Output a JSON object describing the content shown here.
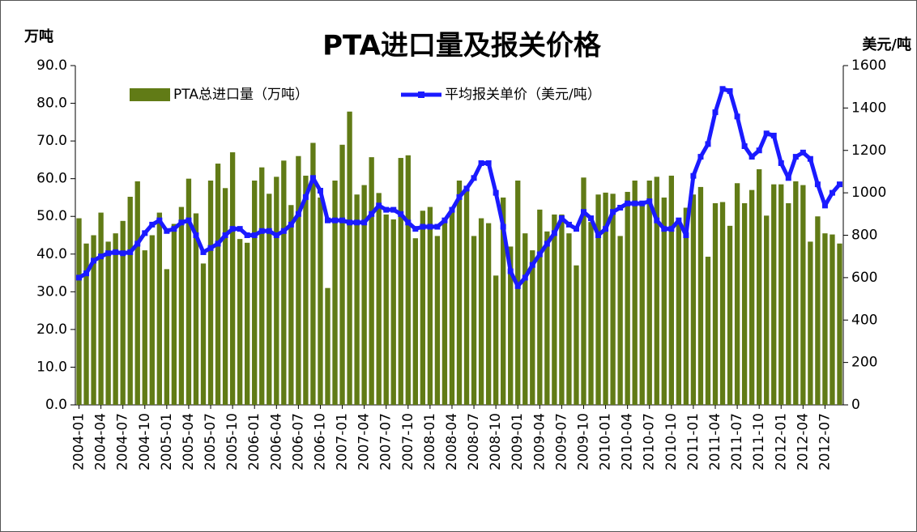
{
  "chart_data": {
    "type": "bar",
    "title": "PTA进口量及报关价格",
    "y_label": "万吨",
    "y2_label": "美元/吨",
    "categories": [
      "2004-01",
      null,
      null,
      "2004-04",
      null,
      null,
      "2004-07",
      null,
      null,
      "2004-10",
      null,
      null,
      "2005-01",
      null,
      null,
      "2005-04",
      null,
      null,
      "2005-07",
      null,
      null,
      "2005-10",
      null,
      null,
      "2006-01",
      null,
      null,
      "2006-04",
      null,
      null,
      "2006-07",
      null,
      null,
      "2006-10",
      null,
      null,
      "2007-01",
      null,
      null,
      "2007-04",
      null,
      null,
      "2007-07",
      null,
      null,
      "2007-10",
      null,
      null,
      "2008-01",
      null,
      null,
      "2008-04",
      null,
      null,
      "2008-07",
      null,
      null,
      "2008-10",
      null,
      null,
      "2009-01",
      null,
      null,
      "2009-04",
      null,
      null,
      "2009-07",
      null,
      null,
      "2009-10",
      null,
      null,
      "2010-01",
      null,
      null,
      "2010-04",
      null,
      null,
      "2010-07",
      null,
      null,
      "2010-10",
      null,
      null,
      "2011-01",
      null,
      null,
      "2011-04",
      null,
      null,
      "2011-07",
      null,
      null,
      "2011-10",
      null,
      null,
      "2012-01",
      null,
      null,
      "2012-04",
      null,
      null,
      "2012-07",
      null,
      null
    ],
    "series": [
      {
        "name": "PTA总进口量（万吨）",
        "type": "bar",
        "color": "#617b16",
        "values": [
          49.5,
          42.8,
          45,
          51,
          43.3,
          45.5,
          48.8,
          55.2,
          59.3,
          41,
          45,
          51,
          36,
          48,
          52.5,
          60,
          50.8,
          37.5,
          59.5,
          64,
          57.5,
          67,
          44,
          43,
          59.5,
          63,
          56,
          60.5,
          64.8,
          53,
          66,
          60.8,
          69.5,
          55,
          31,
          59.5,
          69,
          77.8,
          55.8,
          58.3,
          65.7,
          56.2,
          50.5,
          49.2,
          65.5,
          66.2,
          44.2,
          51.5,
          52.5,
          44.8,
          49.3,
          51.3,
          59.5,
          57.5,
          44.8,
          49.5,
          48.2,
          34.3,
          55,
          42,
          59.5,
          45.5,
          41,
          51.8,
          46,
          50.5,
          50.5,
          45.5,
          37,
          60.3,
          48.5,
          55.8,
          56.3,
          56,
          44.8,
          56.5,
          59.5,
          53,
          59.5,
          60.5,
          55,
          60.8,
          48,
          52.3,
          55.8,
          57.8,
          39.3,
          53.5,
          53.8,
          47.5,
          58.8,
          53.5,
          57,
          62.5,
          50.2,
          58.5,
          58.5,
          53.5,
          59.3,
          58.3,
          43.3,
          50,
          45.5,
          45.2,
          42.8
        ]
      },
      {
        "name": "平均报关单价（美元/吨）",
        "type": "line",
        "axis": "y2",
        "color": "#1a1aff",
        "values": [
          600,
          620,
          680,
          700,
          715,
          720,
          715,
          720,
          760,
          810,
          850,
          870,
          820,
          830,
          860,
          870,
          800,
          720,
          740,
          760,
          800,
          830,
          830,
          800,
          800,
          820,
          820,
          800,
          820,
          850,
          900,
          980,
          1070,
          1010,
          870,
          870,
          870,
          860,
          860,
          860,
          900,
          940,
          920,
          920,
          900,
          860,
          830,
          840,
          840,
          840,
          870,
          920,
          980,
          1020,
          1070,
          1140,
          1140,
          1000,
          840,
          630,
          560,
          600,
          660,
          710,
          760,
          810,
          880,
          850,
          830,
          910,
          880,
          800,
          830,
          910,
          930,
          950,
          950,
          950,
          960,
          870,
          830,
          830,
          870,
          800,
          1080,
          1170,
          1230,
          1380,
          1490,
          1480,
          1360,
          1220,
          1170,
          1200,
          1280,
          1270,
          1140,
          1070,
          1170,
          1190,
          1160,
          1040,
          940,
          1000,
          1040
        ]
      }
    ],
    "ylim": [
      0,
      90
    ],
    "yticks": [
      {
        "value": 0,
        "label": "0.0"
      },
      {
        "value": 10,
        "label": "10.0"
      },
      {
        "value": 20,
        "label": "20.0"
      },
      {
        "value": 30,
        "label": "30.0"
      },
      {
        "value": 40,
        "label": "40.0"
      },
      {
        "value": 50,
        "label": "50.0"
      },
      {
        "value": 60,
        "label": "60.0"
      },
      {
        "value": 70,
        "label": "70.0"
      },
      {
        "value": 80,
        "label": "80.0"
      },
      {
        "value": 90,
        "label": "90.0"
      }
    ],
    "y2lim": [
      0,
      1600
    ],
    "y2ticks": [
      0,
      200,
      400,
      600,
      800,
      1000,
      1200,
      1400,
      1600
    ],
    "legend": "top"
  }
}
